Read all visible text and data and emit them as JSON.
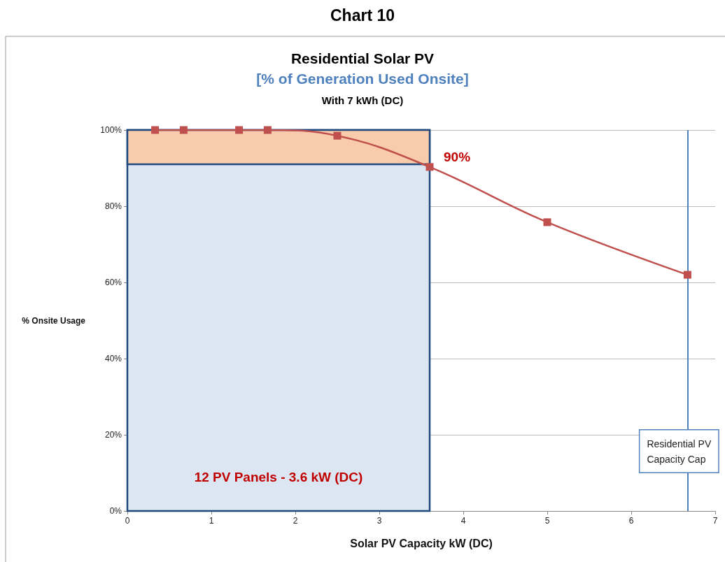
{
  "chart_data": {
    "type": "line",
    "title": "Residential Solar PV",
    "subtitle": "[% of Generation Used Onsite]",
    "xlabel": "Solar PV Capacity kW (DC)",
    "ylabel": "% Onsite Usage",
    "x": [
      0.33,
      0.67,
      1.33,
      1.67,
      2.5,
      3.6,
      5,
      6.67
    ],
    "series": [
      {
        "color": "#c0504d",
        "values": [
          100,
          100,
          100,
          100,
          98.5,
          90.3,
          75.8,
          62
        ]
      }
    ],
    "xlim": [
      0,
      7
    ],
    "xticks": [
      0,
      1,
      2,
      3,
      4,
      5,
      6,
      7
    ],
    "ylim": [
      0,
      100
    ],
    "yticks": [
      {
        "value": 0,
        "label": "0%"
      },
      {
        "value": 20,
        "label": "20%"
      },
      {
        "value": 40,
        "label": "40%"
      },
      {
        "value": 60,
        "label": "60%"
      },
      {
        "value": 80,
        "label": "80%"
      },
      {
        "value": 100,
        "label": "100%"
      }
    ],
    "grid": "y",
    "marker": "square",
    "line_style": "solid",
    "bands": [
      {
        "axis": "x",
        "from": 0,
        "to": 3.6,
        "label": "12 PV Panels - 3.6 kW (DC)",
        "color": "#dce6f2"
      },
      {
        "axis": "y",
        "from": 91,
        "to": 100,
        "label": null,
        "color": "#f8cbad"
      }
    ],
    "ref_lines": [
      {
        "axis": "x",
        "value": 6.67,
        "label": "Residential PV\nCapacity Cap",
        "color": "#4f81bd"
      }
    ],
    "annotations": [
      "Chart 10",
      "With 7 kWh (DC)",
      {
        "text": "90%",
        "x": 3.6,
        "y": 90
      }
    ]
  }
}
